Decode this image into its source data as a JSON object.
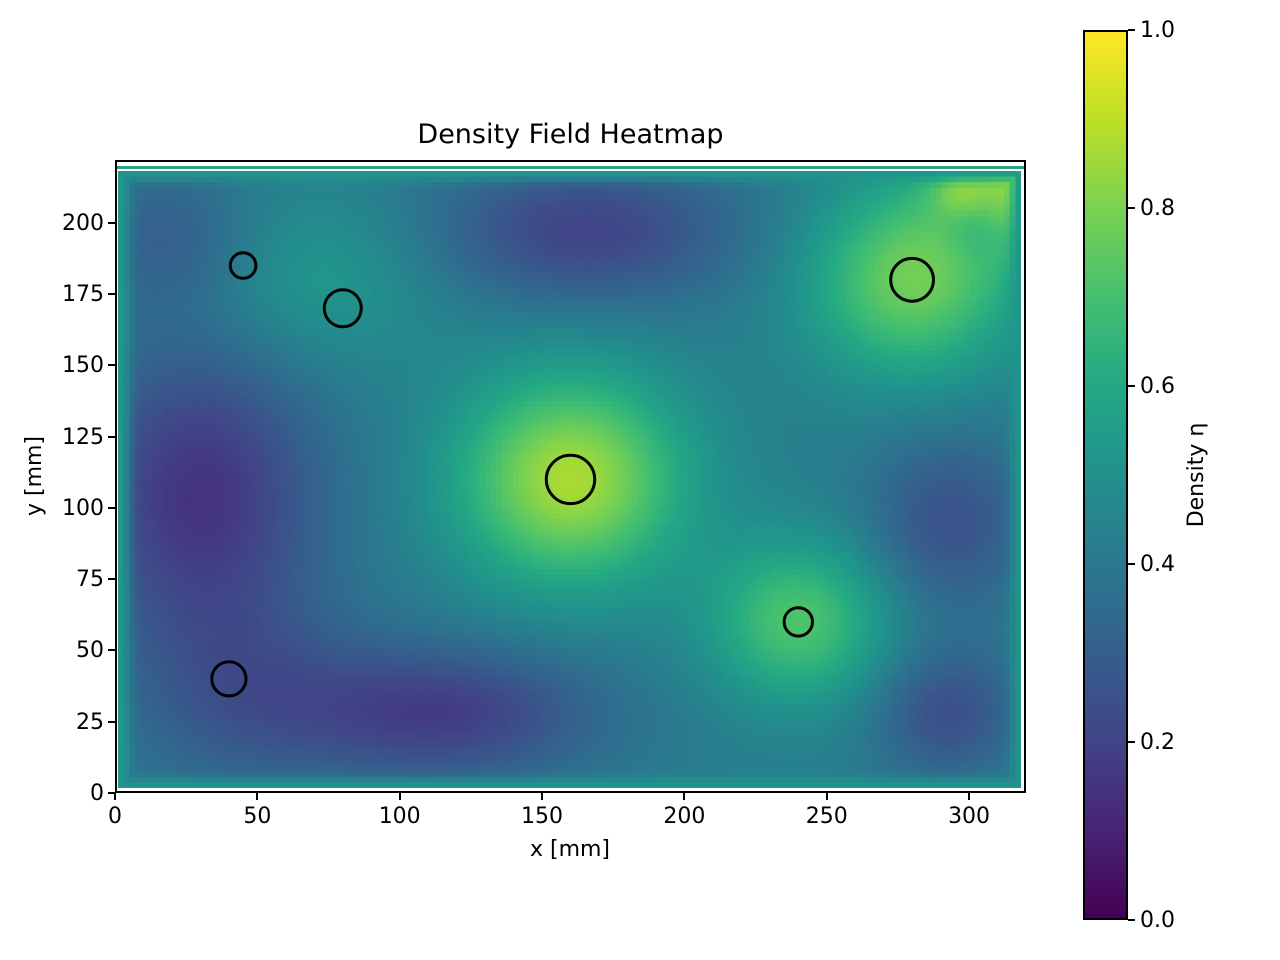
{
  "figure": {
    "background": "#ffffff",
    "text_color": "#000000"
  },
  "chart_data": {
    "type": "heatmap",
    "title": "Density Field Heatmap",
    "xlabel": "x [mm]",
    "ylabel": "y [mm]",
    "colorbar_label": "Density η",
    "x_range": [
      0,
      320
    ],
    "y_range": [
      0,
      222
    ],
    "x_ticks": [
      0,
      50,
      100,
      150,
      200,
      250,
      300
    ],
    "y_ticks": [
      0,
      25,
      50,
      75,
      100,
      125,
      150,
      175,
      200
    ],
    "colorbar_ticks": [
      0.0,
      0.2,
      0.4,
      0.6,
      0.8,
      1.0
    ],
    "colorbar_range": [
      0.0,
      1.0
    ],
    "grid": false,
    "colormap": {
      "name": "viridis",
      "stops": [
        "#440154",
        "#482475",
        "#414487",
        "#355f8d",
        "#2a788e",
        "#21918c",
        "#22a884",
        "#44bf70",
        "#7ad151",
        "#bddf26",
        "#fde725"
      ]
    },
    "top_edge_line_color": "#2aa27e",
    "field": {
      "description": "smooth density field eta(x,y), base value plus gaussian bumps/dips, mid-value band at domain edges",
      "base": 0.42,
      "edge_value": 0.52,
      "edge_sigma": 3.5,
      "edge_domain": [
        2,
        318,
        2,
        218
      ],
      "bumps": [
        {
          "x": 160,
          "y": 110,
          "amp": 0.45,
          "sx": 28,
          "sy": 26
        },
        {
          "x": 240,
          "y": 60,
          "amp": 0.3,
          "sx": 22,
          "sy": 20
        },
        {
          "x": 280,
          "y": 180,
          "amp": 0.36,
          "sx": 26,
          "sy": 24
        },
        {
          "x": 322,
          "y": 218,
          "amp": 0.42,
          "sx": 22,
          "sy": 18
        },
        {
          "x": 70,
          "y": 180,
          "amp": 0.12,
          "sx": 30,
          "sy": 22
        },
        {
          "x": 30,
          "y": 105,
          "amp": -0.27,
          "sx": 30,
          "sy": 38
        },
        {
          "x": 165,
          "y": 197,
          "amp": -0.22,
          "sx": 38,
          "sy": 18
        },
        {
          "x": 115,
          "y": 28,
          "amp": -0.24,
          "sx": 38,
          "sy": 17
        },
        {
          "x": 292,
          "y": 28,
          "amp": -0.18,
          "sx": 18,
          "sy": 16
        },
        {
          "x": 293,
          "y": 95,
          "amp": -0.17,
          "sx": 20,
          "sy": 22
        },
        {
          "x": 45,
          "y": 35,
          "amp": -0.12,
          "sx": 30,
          "sy": 25
        },
        {
          "x": 20,
          "y": 195,
          "amp": -0.12,
          "sx": 22,
          "sy": 18
        },
        {
          "x": 302,
          "y": 198,
          "amp": -0.08,
          "sx": 8,
          "sy": 8
        },
        {
          "x": 296,
          "y": 211,
          "amp": 0.1,
          "sx": 6,
          "sy": 6
        }
      ]
    },
    "markers": {
      "shape": "circle",
      "stroke_color": "#000000",
      "fill": "none",
      "positions": [
        {
          "x": 45,
          "y": 185,
          "r": 4.5
        },
        {
          "x": 80,
          "y": 170,
          "r": 6.5
        },
        {
          "x": 160,
          "y": 110,
          "r": 8.5
        },
        {
          "x": 240,
          "y": 60,
          "r": 5.0
        },
        {
          "x": 280,
          "y": 180,
          "r": 7.5
        },
        {
          "x": 40,
          "y": 40,
          "r": 6.0
        }
      ]
    }
  }
}
